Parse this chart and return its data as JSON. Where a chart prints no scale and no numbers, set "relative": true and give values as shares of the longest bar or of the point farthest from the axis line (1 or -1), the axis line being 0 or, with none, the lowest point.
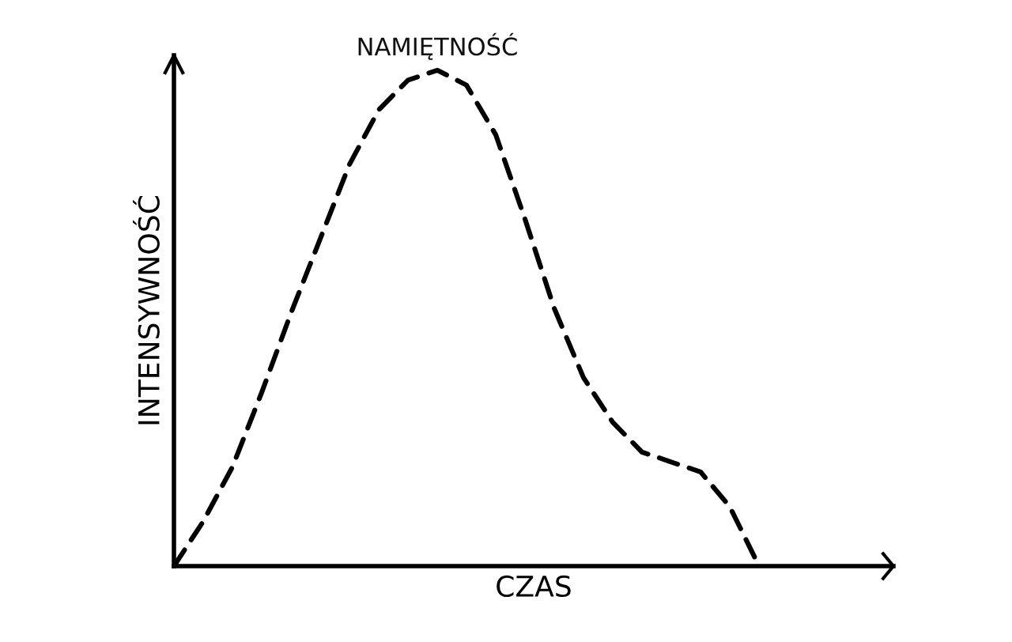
{
  "chart_data": {
    "type": "line",
    "relative": true,
    "xlabel": "CZAS",
    "ylabel": "INTENSYWNOŚĆ",
    "categories": [
      null,
      null,
      null,
      null,
      null,
      null,
      null,
      null,
      null,
      null,
      null,
      null,
      null,
      null,
      null,
      null,
      null,
      null,
      null,
      null,
      null
    ],
    "series": [
      {
        "name": "NAMIĘTNOŚĆ",
        "color": "#000000",
        "values": [
          0,
          0.09,
          0.2,
          0.35,
          0.51,
          0.66,
          0.81,
          0.92,
          0.98,
          1,
          0.97,
          0.87,
          0.7,
          0.52,
          0.38,
          0.29,
          0.23,
          0.21,
          0.19,
          0.12,
          0
        ]
      }
    ],
    "line_style": "dashed",
    "marker": "none",
    "legend": false
  }
}
